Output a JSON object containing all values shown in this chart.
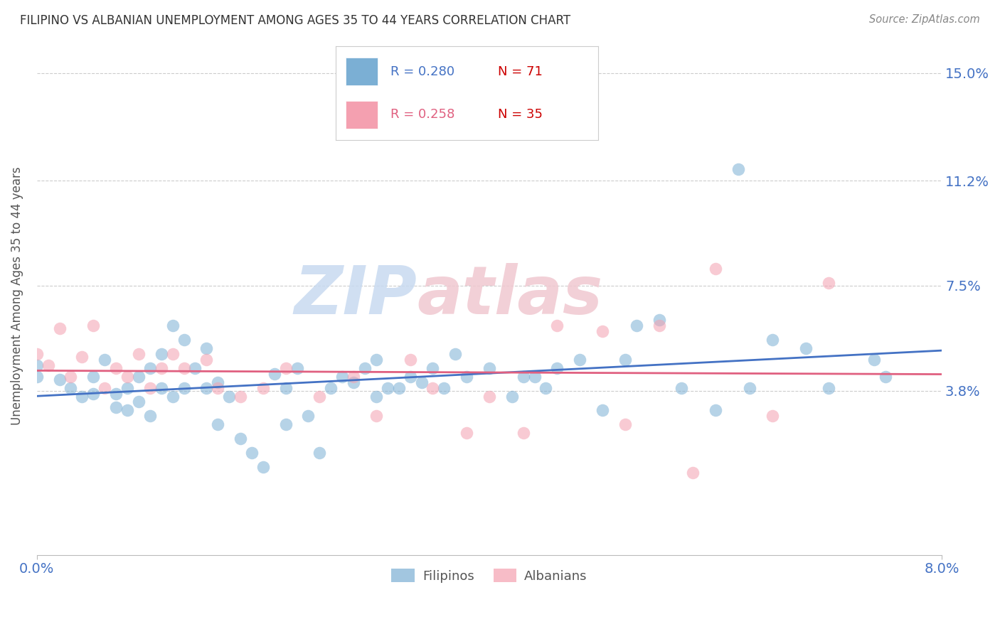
{
  "title": "FILIPINO VS ALBANIAN UNEMPLOYMENT AMONG AGES 35 TO 44 YEARS CORRELATION CHART",
  "source": "Source: ZipAtlas.com",
  "ylabel": "Unemployment Among Ages 35 to 44 years",
  "xlim": [
    0.0,
    0.08
  ],
  "ylim": [
    -0.02,
    0.163
  ],
  "yticks": [
    0.038,
    0.075,
    0.112,
    0.15
  ],
  "ytick_labels": [
    "3.8%",
    "7.5%",
    "11.2%",
    "15.0%"
  ],
  "xticks": [
    0.0,
    0.08
  ],
  "xtick_labels": [
    "0.0%",
    "8.0%"
  ],
  "grid_color": "#cccccc",
  "background_color": "#ffffff",
  "filipinos": {
    "R": 0.28,
    "N": 71,
    "color": "#7bafd4",
    "line_color": "#4472c4",
    "x": [
      0.0,
      0.0,
      0.002,
      0.003,
      0.004,
      0.005,
      0.005,
      0.006,
      0.007,
      0.007,
      0.008,
      0.008,
      0.009,
      0.009,
      0.01,
      0.01,
      0.011,
      0.011,
      0.012,
      0.012,
      0.013,
      0.013,
      0.014,
      0.015,
      0.015,
      0.016,
      0.016,
      0.017,
      0.018,
      0.019,
      0.02,
      0.021,
      0.022,
      0.022,
      0.023,
      0.024,
      0.025,
      0.026,
      0.027,
      0.028,
      0.029,
      0.03,
      0.03,
      0.031,
      0.032,
      0.033,
      0.034,
      0.035,
      0.036,
      0.037,
      0.038,
      0.04,
      0.042,
      0.043,
      0.044,
      0.045,
      0.046,
      0.048,
      0.05,
      0.052,
      0.053,
      0.055,
      0.057,
      0.06,
      0.062,
      0.063,
      0.065,
      0.068,
      0.07,
      0.074,
      0.075
    ],
    "y": [
      0.047,
      0.043,
      0.042,
      0.039,
      0.036,
      0.043,
      0.037,
      0.049,
      0.037,
      0.032,
      0.039,
      0.031,
      0.043,
      0.034,
      0.046,
      0.029,
      0.051,
      0.039,
      0.061,
      0.036,
      0.056,
      0.039,
      0.046,
      0.053,
      0.039,
      0.041,
      0.026,
      0.036,
      0.021,
      0.016,
      0.011,
      0.044,
      0.039,
      0.026,
      0.046,
      0.029,
      0.016,
      0.039,
      0.043,
      0.041,
      0.046,
      0.036,
      0.049,
      0.039,
      0.039,
      0.043,
      0.041,
      0.046,
      0.039,
      0.051,
      0.043,
      0.046,
      0.036,
      0.043,
      0.043,
      0.039,
      0.046,
      0.049,
      0.031,
      0.049,
      0.061,
      0.063,
      0.039,
      0.031,
      0.116,
      0.039,
      0.056,
      0.053,
      0.039,
      0.049,
      0.043
    ]
  },
  "albanians": {
    "R": 0.258,
    "N": 35,
    "color": "#f4a0b0",
    "line_color": "#e06080",
    "x": [
      0.0,
      0.001,
      0.002,
      0.003,
      0.004,
      0.005,
      0.006,
      0.007,
      0.008,
      0.009,
      0.01,
      0.011,
      0.012,
      0.013,
      0.015,
      0.016,
      0.018,
      0.02,
      0.022,
      0.025,
      0.028,
      0.03,
      0.033,
      0.035,
      0.038,
      0.04,
      0.043,
      0.046,
      0.05,
      0.052,
      0.055,
      0.058,
      0.06,
      0.065,
      0.07
    ],
    "y": [
      0.051,
      0.047,
      0.06,
      0.043,
      0.05,
      0.061,
      0.039,
      0.046,
      0.043,
      0.051,
      0.039,
      0.046,
      0.051,
      0.046,
      0.049,
      0.039,
      0.036,
      0.039,
      0.046,
      0.036,
      0.043,
      0.029,
      0.049,
      0.039,
      0.023,
      0.036,
      0.023,
      0.061,
      0.059,
      0.026,
      0.061,
      0.009,
      0.081,
      0.029,
      0.076
    ]
  },
  "watermark_zip": "ZIP",
  "watermark_atlas": "atlas",
  "watermark_color": "#dde8f5",
  "watermark_pink": "#f5dde5"
}
